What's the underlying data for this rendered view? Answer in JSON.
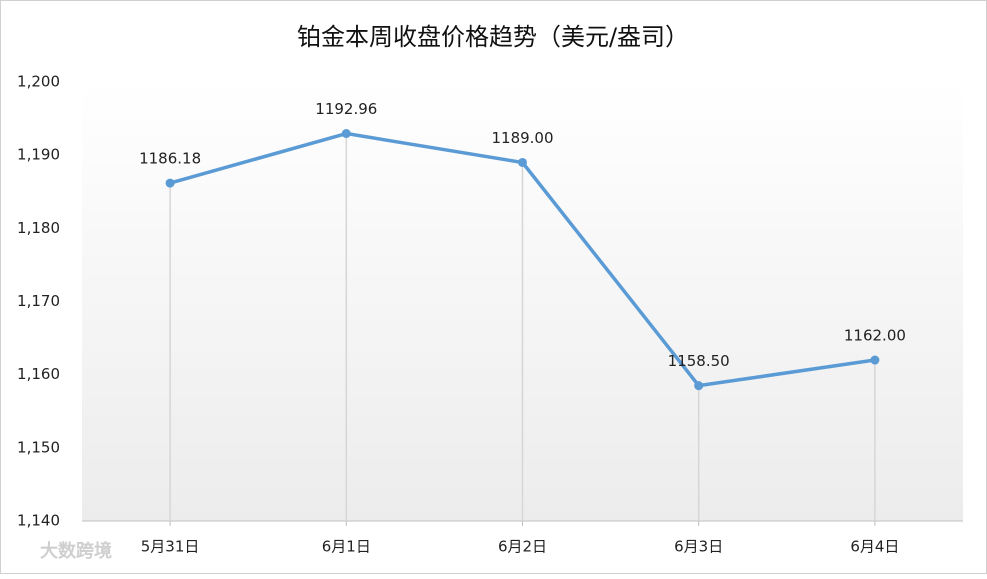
{
  "chart_data": {
    "type": "line",
    "title": "铂金本周收盘价格趋势（美元/盎司）",
    "categories": [
      "5月31日",
      "6月1日",
      "6月2日",
      "6月3日",
      "6月4日"
    ],
    "values": [
      1186.18,
      1192.96,
      1189.0,
      1158.5,
      1162.0
    ],
    "value_labels": [
      "1186.18",
      "1192.96",
      "1189.00",
      "1158.50",
      "1162.00"
    ],
    "color": "#5b9bd5",
    "ylim": [
      1140,
      1200
    ],
    "yticks": [
      {
        "value": 1140,
        "label": "1,140"
      },
      {
        "value": 1150,
        "label": "1,150"
      },
      {
        "value": 1160,
        "label": "1,160"
      },
      {
        "value": 1170,
        "label": "1,170"
      },
      {
        "value": 1180,
        "label": "1,180"
      },
      {
        "value": 1190,
        "label": "1,190"
      },
      {
        "value": 1200,
        "label": "1,200"
      }
    ],
    "watermark": "大数跨境"
  }
}
